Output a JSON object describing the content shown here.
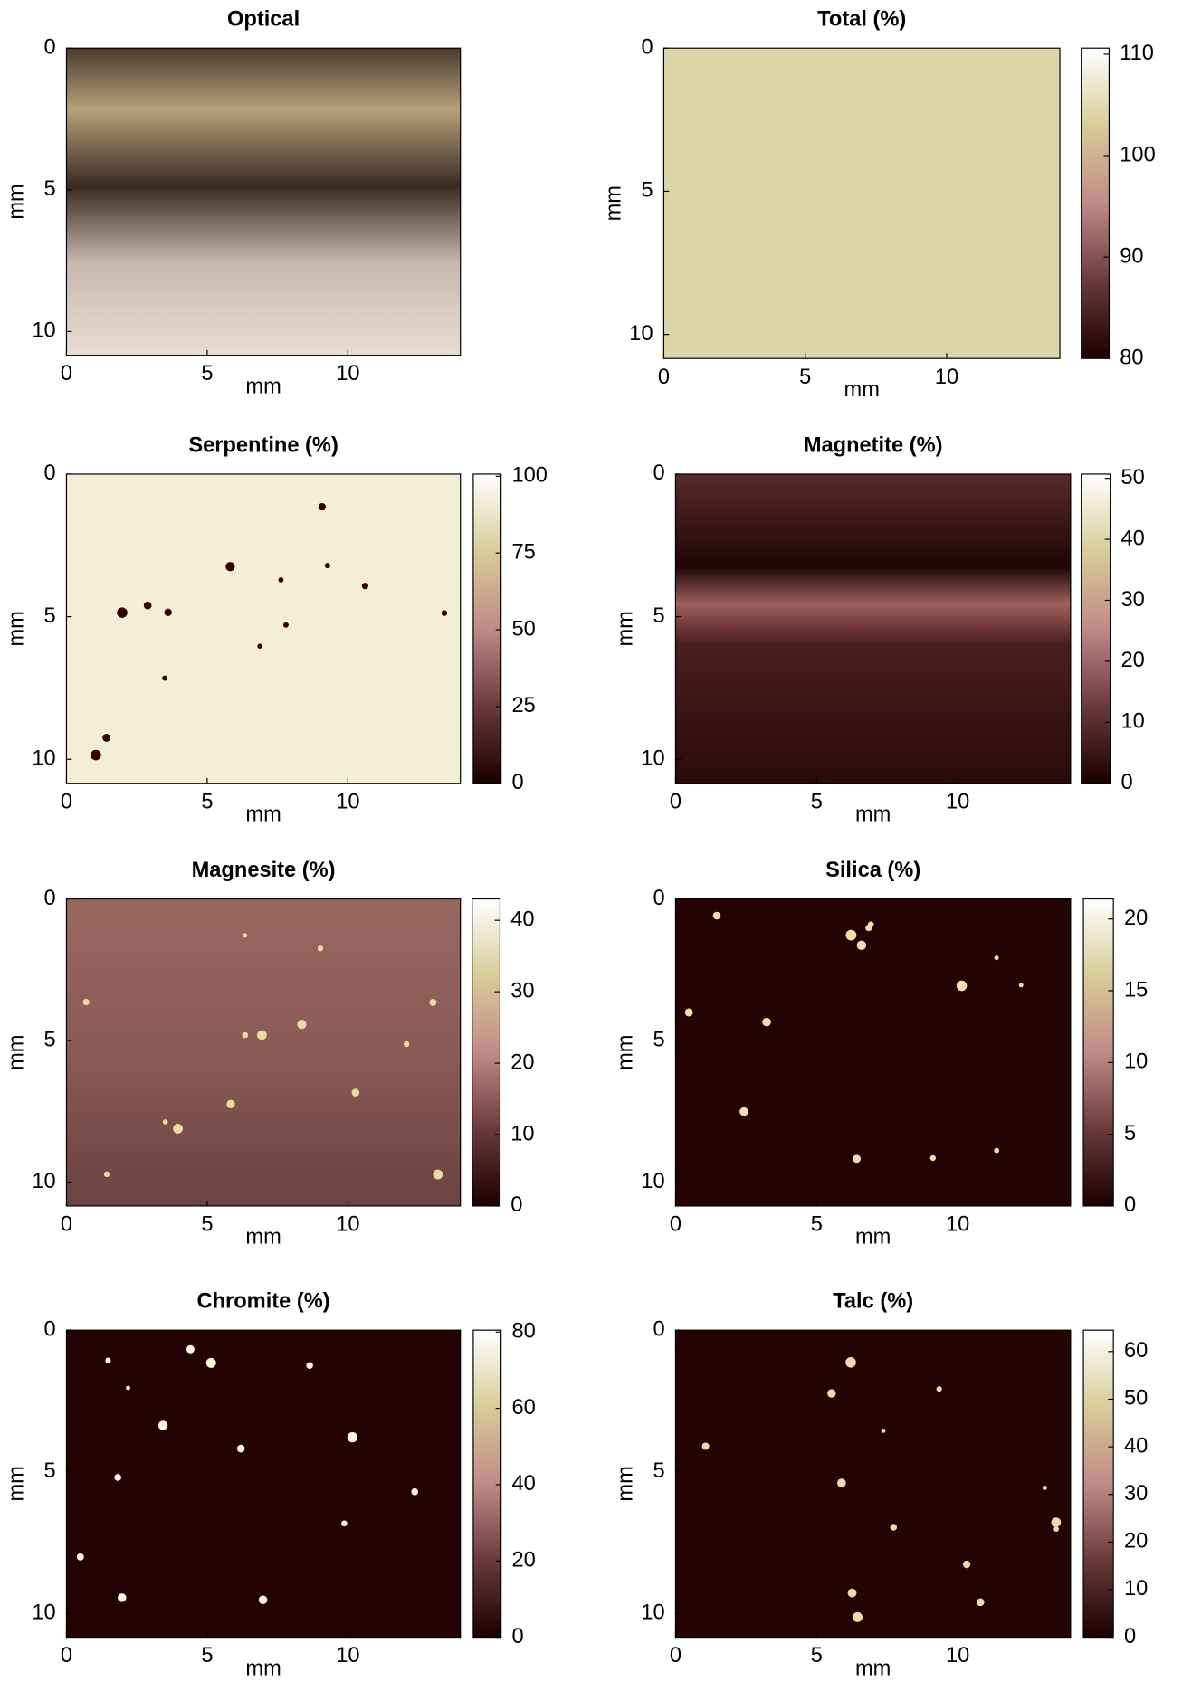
{
  "chart_data": [
    {
      "type": "heatmap",
      "title": "Optical",
      "xlabel": "mm",
      "ylabel": "mm",
      "xlim": [
        0,
        14
      ],
      "ylim": [
        0,
        10.84
      ],
      "xticks": [
        0,
        5,
        10
      ],
      "yticks": [
        0,
        5,
        10
      ]
    },
    {
      "type": "heatmap",
      "title": "Total (%)",
      "xlabel": "mm",
      "ylabel": "mm",
      "xlim": [
        0,
        14
      ],
      "ylim": [
        0,
        10.84
      ],
      "xticks": [
        0,
        5,
        10
      ],
      "yticks": [
        0,
        5,
        10
      ],
      "clim": [
        80,
        110.6
      ],
      "cticks": [
        80,
        90,
        100,
        110
      ]
    },
    {
      "type": "heatmap",
      "title": "Serpentine (%)",
      "xlabel": "mm",
      "ylabel": "mm",
      "xlim": [
        0,
        14
      ],
      "ylim": [
        0,
        10.84
      ],
      "xticks": [
        0,
        5,
        10
      ],
      "yticks": [
        0,
        5,
        10
      ],
      "clim": [
        0,
        100.7
      ],
      "cticks": [
        0,
        25,
        50,
        75,
        100
      ]
    },
    {
      "type": "heatmap",
      "title": "Magnetite (%)",
      "xlabel": "mm",
      "ylabel": "mm",
      "xlim": [
        0,
        14
      ],
      "ylim": [
        0,
        10.84
      ],
      "xticks": [
        0,
        5,
        10
      ],
      "yticks": [
        0,
        5,
        10
      ],
      "clim": [
        0,
        50.7
      ],
      "cticks": [
        0,
        10,
        20,
        30,
        40,
        50
      ]
    },
    {
      "type": "heatmap",
      "title": "Magnesite (%)",
      "xlabel": "mm",
      "ylabel": "mm",
      "xlim": [
        0,
        14
      ],
      "ylim": [
        0,
        10.84
      ],
      "xticks": [
        0,
        5,
        10
      ],
      "yticks": [
        0,
        5,
        10
      ],
      "clim": [
        0,
        43
      ],
      "cticks": [
        0,
        10,
        20,
        30,
        40
      ]
    },
    {
      "type": "heatmap",
      "title": "Silica (%)",
      "xlabel": "mm",
      "ylabel": "mm",
      "xlim": [
        0,
        14
      ],
      "ylim": [
        0,
        10.84
      ],
      "xticks": [
        0,
        5,
        10
      ],
      "yticks": [
        0,
        5,
        10
      ],
      "clim": [
        0,
        21.4
      ],
      "cticks": [
        0,
        5,
        10,
        15,
        20
      ]
    },
    {
      "type": "heatmap",
      "title": "Chromite (%)",
      "xlabel": "mm",
      "ylabel": "mm",
      "xlim": [
        0,
        14
      ],
      "ylim": [
        0,
        10.84
      ],
      "xticks": [
        0,
        5,
        10
      ],
      "yticks": [
        0,
        5,
        10
      ],
      "clim": [
        0,
        80.5
      ],
      "cticks": [
        0,
        20,
        40,
        60,
        80
      ]
    },
    {
      "type": "heatmap",
      "title": "Talc (%)",
      "xlabel": "mm",
      "ylabel": "mm",
      "xlim": [
        0,
        14
      ],
      "ylim": [
        0,
        10.84
      ],
      "xticks": [
        0,
        5,
        10
      ],
      "yticks": [
        0,
        5,
        10
      ],
      "clim": [
        0,
        64.5
      ],
      "cticks": [
        0,
        10,
        20,
        30,
        40,
        50,
        60
      ]
    }
  ]
}
